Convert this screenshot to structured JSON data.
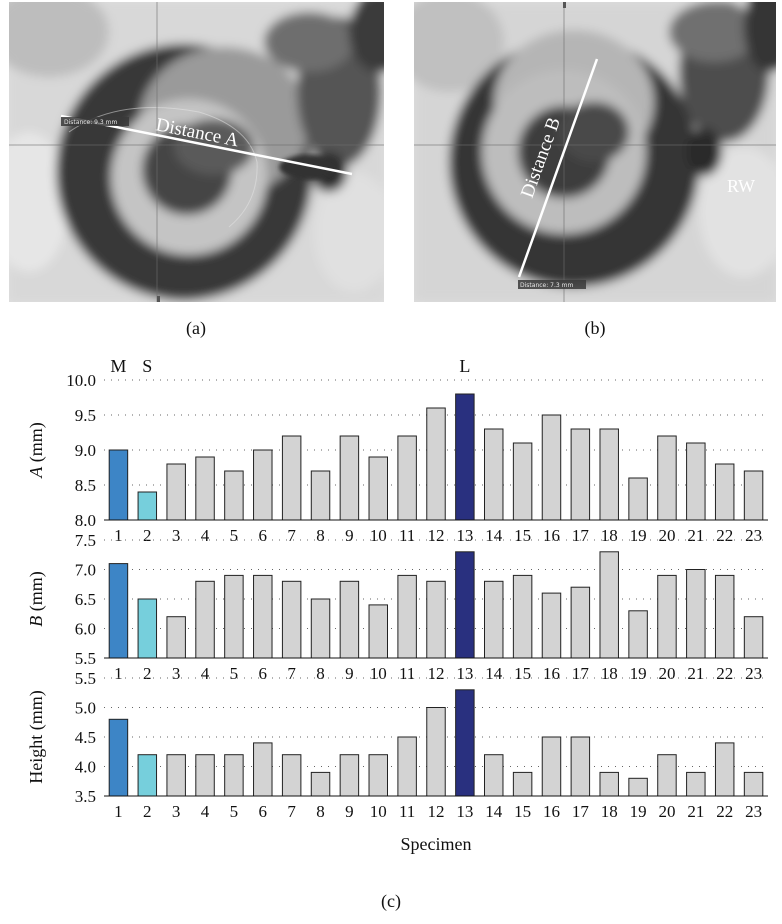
{
  "panels": {
    "a": {
      "label": "(a)",
      "line_label": "Distance A",
      "readout": "Distance:  9.3 mm"
    },
    "b": {
      "label": "(b)",
      "line_label": "Distance B",
      "readout": "Distance:  7.3 mm",
      "rw_label": "RW"
    },
    "c": {
      "label": "(c)"
    }
  },
  "colors": {
    "M": "#3d85c6",
    "S": "#76cfdc",
    "L": "#29307f",
    "other": "#d3d3d3",
    "bar_edge": "#222222"
  },
  "chart_data": {
    "type": "bar",
    "xlabel": "Specimen",
    "categories": [
      "1",
      "2",
      "3",
      "4",
      "5",
      "6",
      "7",
      "8",
      "9",
      "10",
      "11",
      "12",
      "13",
      "14",
      "15",
      "16",
      "17",
      "18",
      "19",
      "20",
      "21",
      "22",
      "23"
    ],
    "markers": [
      {
        "category": "1",
        "label": "M"
      },
      {
        "category": "2",
        "label": "S"
      },
      {
        "category": "13",
        "label": "L"
      }
    ],
    "subplots": [
      {
        "ylabel_italic": "A",
        "ylabel_rest": " (mm)",
        "ylim": [
          8.0,
          10.0
        ],
        "yticks": [
          "8.0",
          "8.5",
          "9.0",
          "9.5",
          "10.0"
        ],
        "values": [
          9.0,
          8.4,
          8.8,
          8.9,
          8.7,
          9.0,
          9.2,
          8.7,
          9.2,
          8.9,
          9.2,
          9.6,
          9.8,
          9.3,
          9.1,
          9.5,
          9.3,
          9.3,
          8.6,
          9.2,
          9.1,
          8.8,
          8.7
        ]
      },
      {
        "ylabel_italic": "B",
        "ylabel_rest": " (mm)",
        "ylim": [
          5.5,
          7.5
        ],
        "yticks": [
          "5.5",
          "6.0",
          "6.5",
          "7.0",
          "7.5"
        ],
        "values": [
          7.1,
          6.5,
          6.2,
          6.8,
          6.9,
          6.9,
          6.8,
          6.5,
          6.8,
          6.4,
          6.9,
          6.8,
          7.3,
          6.8,
          6.9,
          6.6,
          6.7,
          7.3,
          6.3,
          6.9,
          7.0,
          6.9,
          6.2
        ]
      },
      {
        "ylabel_italic": "",
        "ylabel_rest": "Height (mm)",
        "ylim": [
          3.5,
          5.5
        ],
        "yticks": [
          "3.5",
          "4.0",
          "4.5",
          "5.0",
          "5.5"
        ],
        "values": [
          4.8,
          4.2,
          4.2,
          4.2,
          4.2,
          4.4,
          4.2,
          3.9,
          4.2,
          4.2,
          4.5,
          5.0,
          5.3,
          4.2,
          3.9,
          4.5,
          4.5,
          3.9,
          3.8,
          4.2,
          3.9,
          4.4,
          3.9
        ]
      }
    ]
  }
}
